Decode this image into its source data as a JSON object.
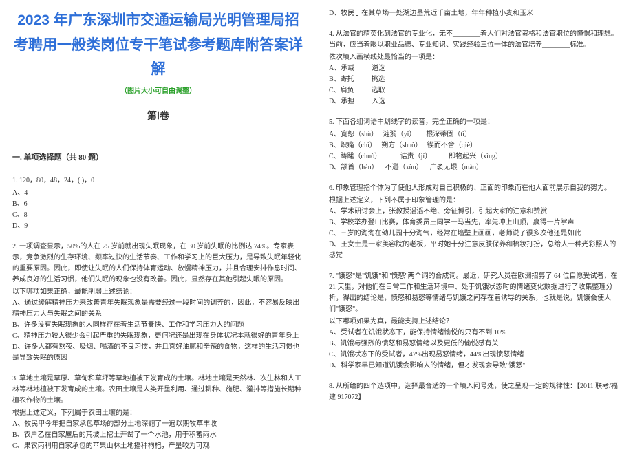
{
  "title": "2023 年广东深圳市交通运输局光明管理局招考聘用一般类岗位专干笔试参考题库附答案详解",
  "subtitle": "（图片大小可自由调整）",
  "juan": "第Ⅰ卷",
  "sectionHead": "一. 单项选择题（共 80 题）",
  "q1": {
    "stem": "1. 120，80，48，24，( )，0",
    "a": "A、4",
    "b": "B、6",
    "c": "C、8",
    "d": "D、9"
  },
  "q2": {
    "stem": "2. 一项调查显示，50%的人在 25 岁前就出现失眠现象，在 30 岁前失眠的比例达 74%。专家表示，竞争激烈的生存环境、频率过快的生活节奏、工作和学习上的巨大压力，是导致失眠年轻化的重要原因。因此，即使让失眠的人们保持体育运动、放慢精神压力，并且合理安排作息时间、养成良好的生活习惯，他们失眠的现象也没有改善。因此，显然存在其他引起失眠的原因。",
    "pre": "以下哪项如果正确，最能削弱上述结论：",
    "a": "A、通过缓解精神压力来改善青年失眠现象是需要经过一段时间的调养的，因此，不容易反映出精神压力大与失眠之间的关系",
    "b": "B、许多没有失眠现象的人同样存在着生活节奏快、工作和学习压力大的问题",
    "c": "C、精神压力较大很少会引起严重的失眠现象，更何况还是出现在身体状况本就很好的青年身上",
    "d": "D、许多人都有熬夜、吸烟、喝酒的不良习惯，并且喜好油腻和辛辣的食物，这样的生活习惯也是导致失眠的原因"
  },
  "q3": {
    "stem": "3. 草地土壤是草原、草甸和草坪等草地植被下发育成的土壤。林地土壤是天然林、次生林和人工林等林地植被下发育成的土壤。农田土壤是人类开垦利用、通过耕种、施肥、灌排等措施长期种植农作物的土壤。",
    "pre": "  根据上述定义，下列属于农田土壤的是：",
    "a": "A、牧民甲今年把自家承包草场的部分土地深翻了一遍以期牧草丰收",
    "b": "B、农户乙在自家屋后的荒坡上挖土开凿了一个水池，用于积蓄雨水",
    "c": "C、果农丙利用自家承包的苹果山林土地播种枸杞，产量较为可观",
    "d_r": "D、牧民丁在其草场一处湖边垦荒近千亩土地，年年种植小麦和玉米"
  },
  "q4": {
    "stem": "4. 从法官的精英化到法官的专业化，无不________着人们对法官资格和法官职位的憧憬和理想。当前，应当着眼以职业品德、专业知识、实践经验三位一体的法官培养________标准。",
    "pre": "   依次填入画横线处最恰当的一项是：",
    "a": "A、承载          遴选",
    "b": "B、寄托          挑选",
    "c": "C、肩负          选取",
    "d": "D、承担          入选"
  },
  "q5": {
    "stem": "5. 下面各组词语中划线字的读音，完全正确的一项是：",
    "a": "A、宽恕（shù）   涟漪（yī）      根深蒂固（tì）",
    "b": "B、炽痛（chì）   朔方（shuò）   锲而不舍（qiè）",
    "c": "C、踌躇（chuò）           诘责（jí）          即物起兴（xìng）",
    "d": "D、颔首（hán）    不逊（xùn）    广袤无垠（mào）"
  },
  "q6": {
    "stem": "6. 印象管理指个体为了使他人形成对自己积极的、正面的印象而在他人面前展示自我的努力。",
    "pre": "根据上述定义，下列不属于印象管理的是：",
    "a": "A、学术研讨会上，张教授滔滔不绝、旁征博引，引起大家的注意和赞赏",
    "b": "B、学校举办登山比赛，体育委员王同学一马当先，率先冲上山顶，赢得一片掌声",
    "c": "C、三岁的淘淘在幼儿园十分淘气，经常在墙壁上画画，老师说了很多次他还是如此",
    "d": "D、王女士是一家美容院的老板，平时她十分注意皮肤保养和梳妆打扮，总给人一种光彩照人的感觉"
  },
  "q7": {
    "stem": "7. \"饿怒\"是\"饥饿\"和\"愤怒\"两个词的合成词。最近，研究人员在欧洲招募了 64 位自愿受试者，在 21 天里，对他们在日常工作和生活环境中、处于饥饿状态时的情绪变化数据进行了收集整理分析，得出的结论是，愤怒和易怒等情绪与饥饿之间存在着诱导的关系，也就是说，饥饿会使人们\"饿怒\"。",
    "pre": "   以下哪项如果为真，最能支持上述结论？",
    "a": "A、受试者在饥饿状态下，能保持情绪愉悦的只有不到 10%",
    "b": "B、饥饿与强烈的愤怒和易怒情绪以及更低的愉悦感有关",
    "c": "C、饥饿状态下的受试者，47%出现易怒情绪，44%出现愤怒情绪",
    "d": "D、科学家早已知道饥饿会影响人的情绪，但才发现会导致\"饿怒\""
  },
  "q8": {
    "stem": "8. 从所给的四个选项中，选择最合适的一个填入问号处，使之呈现一定的规律性：【2011 联考/福建 917072】"
  }
}
